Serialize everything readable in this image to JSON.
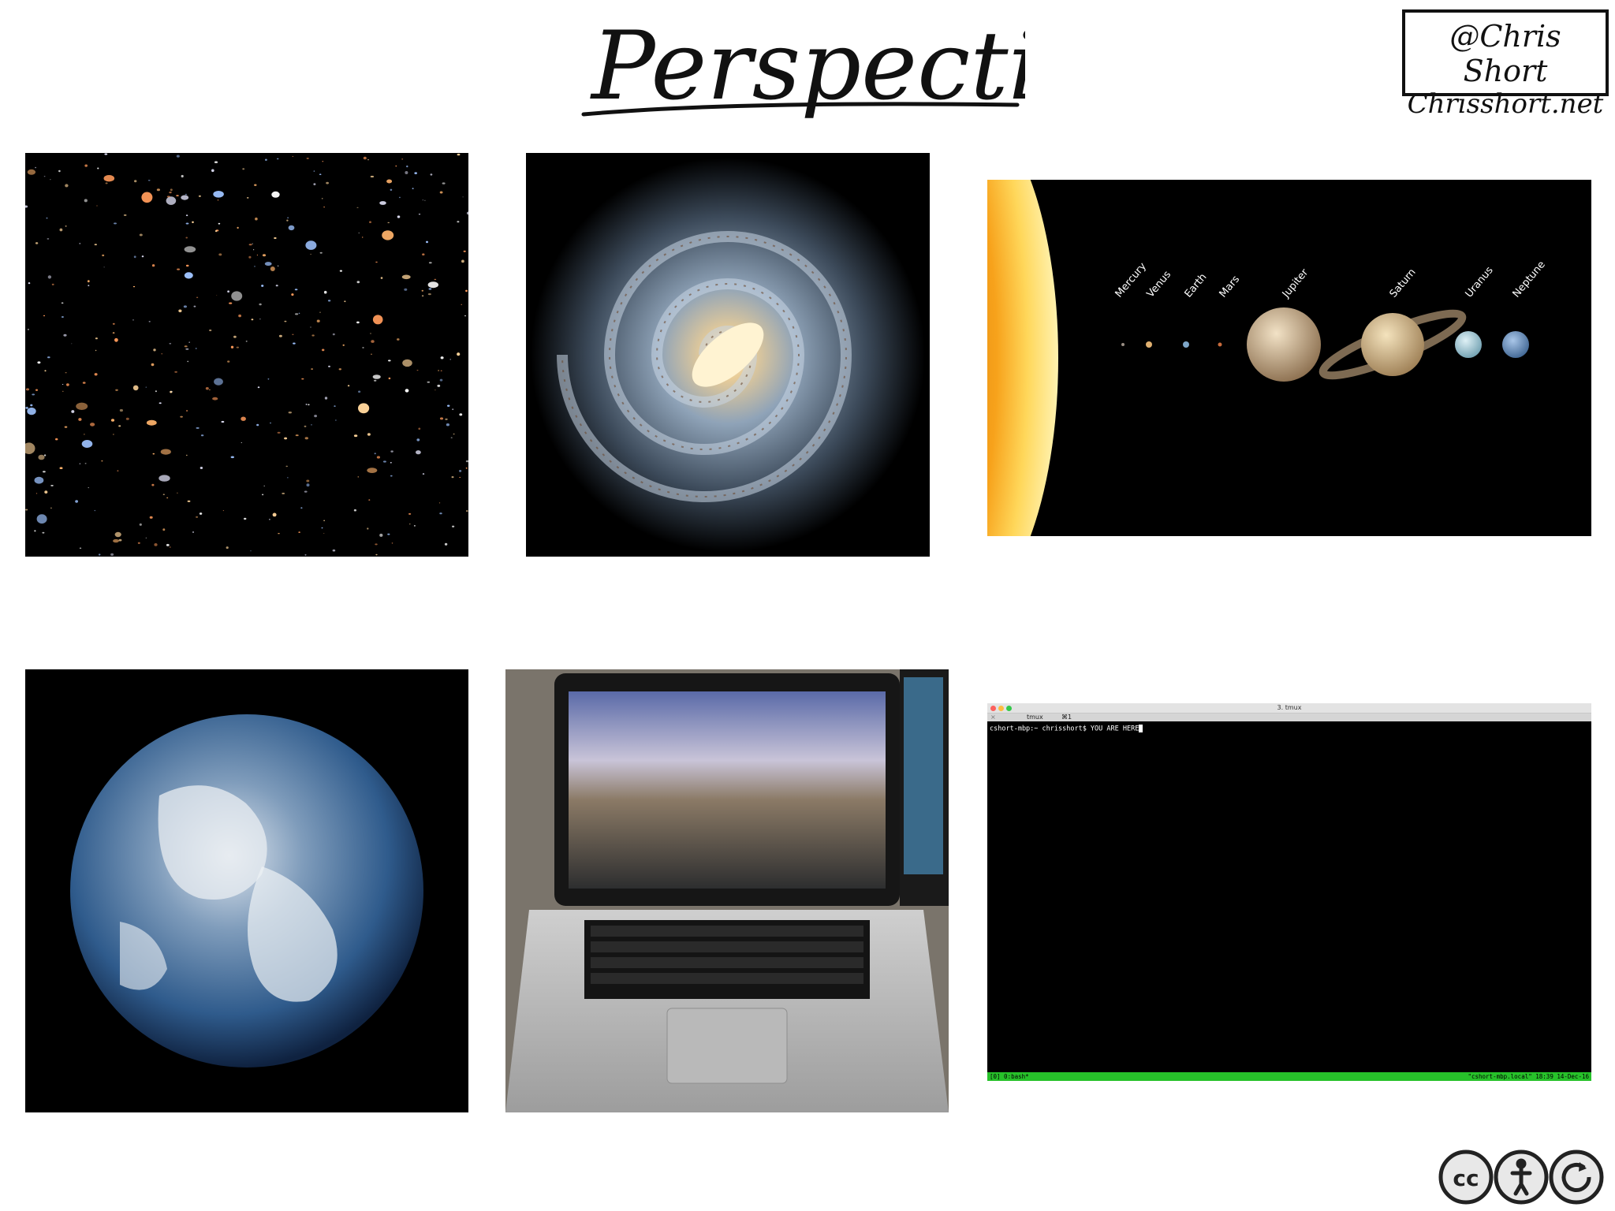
{
  "slide": {
    "title": "Perspective",
    "badge": {
      "handle": "@Chris Short",
      "site": "Chrisshort.net"
    }
  },
  "solar_system": {
    "planets": [
      "Mercury",
      "Venus",
      "Earth",
      "Mars",
      "Jupiter",
      "Saturn",
      "Uranus",
      "Neptune"
    ]
  },
  "terminal": {
    "window_title": "3. tmux",
    "tab_close": "×",
    "tab_label": "tmux",
    "tab_shortcut": "⌘1",
    "prompt": "cshort-mbp:~ chrisshort$ YOU ARE HERE",
    "status_left": "[0] 0:bash*",
    "status_right": "\"cshort-mbp.local\" 18:39 14-Dec-16"
  },
  "license": {
    "badge": "cc by sa"
  },
  "colors": {
    "status_bar": "#27c12a",
    "space": "#000000",
    "sun": "#f7a21b"
  }
}
